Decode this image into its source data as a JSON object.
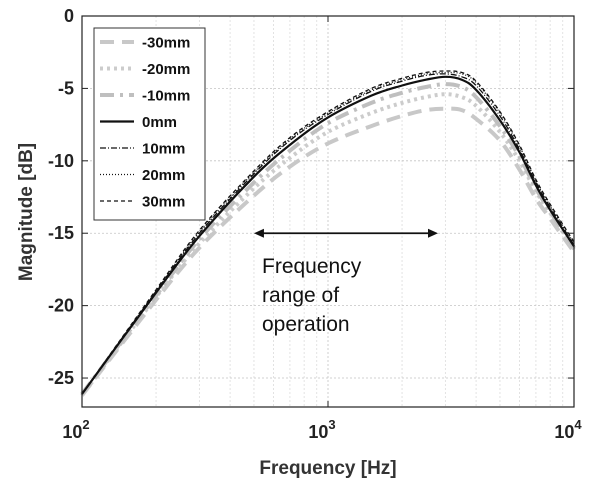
{
  "chart_data": {
    "type": "line",
    "xscale": "log",
    "xlabel": "Frequency [Hz]",
    "ylabel": "Magnitude [dB]",
    "xlim": [
      100,
      10000
    ],
    "ylim": [
      -27,
      0
    ],
    "xticks": [
      {
        "value": 100,
        "base": "10",
        "exp": "2"
      },
      {
        "value": 1000,
        "base": "10",
        "exp": "3"
      },
      {
        "value": 10000,
        "base": "10",
        "exp": "4"
      }
    ],
    "yticks": [
      {
        "value": 0,
        "label": "0"
      },
      {
        "value": -5,
        "label": "-5"
      },
      {
        "value": -10,
        "label": "-10"
      },
      {
        "value": -15,
        "label": "-15"
      },
      {
        "value": -20,
        "label": "-20"
      },
      {
        "value": -25,
        "label": "-25"
      }
    ],
    "grid": true,
    "legend_position": "top-left",
    "series": [
      {
        "name": "-30mm",
        "color": "#c8c8c8",
        "style": "dashed-thick",
        "x": [
          100,
          200,
          300,
          500,
          700,
          1000,
          1500,
          2000,
          2500,
          3000,
          3500,
          4000,
          5000,
          6000,
          7000,
          8000,
          10000
        ],
        "y": [
          -26.2,
          -19.6,
          -16.0,
          -12.4,
          -10.4,
          -8.8,
          -7.6,
          -6.9,
          -6.5,
          -6.4,
          -6.5,
          -7.1,
          -8.6,
          -10.6,
          -12.6,
          -14.0,
          -16.3
        ]
      },
      {
        "name": "-20mm",
        "color": "#cccccc",
        "style": "dotted-thick",
        "x": [
          100,
          200,
          300,
          500,
          700,
          1000,
          1500,
          2000,
          2500,
          3000,
          3500,
          4000,
          5000,
          6000,
          7000,
          8000,
          10000
        ],
        "y": [
          -26.2,
          -19.4,
          -15.7,
          -11.9,
          -9.8,
          -8.0,
          -6.7,
          -6.0,
          -5.6,
          -5.4,
          -5.6,
          -6.2,
          -8.0,
          -10.0,
          -12.1,
          -13.6,
          -16.1
        ]
      },
      {
        "name": "-10mm",
        "color": "#bfbfbf",
        "style": "dashdot-thick",
        "x": [
          100,
          200,
          300,
          500,
          700,
          1000,
          1500,
          2000,
          2500,
          3000,
          3500,
          4000,
          5000,
          6000,
          7000,
          8000,
          10000
        ],
        "y": [
          -26.1,
          -19.3,
          -15.4,
          -11.5,
          -9.3,
          -7.4,
          -6.0,
          -5.3,
          -4.9,
          -4.7,
          -4.9,
          -5.6,
          -7.6,
          -9.7,
          -11.9,
          -13.5,
          -16.0
        ]
      },
      {
        "name": "0mm",
        "color": "#111111",
        "style": "solid",
        "x": [
          100,
          200,
          300,
          500,
          700,
          1000,
          1500,
          2000,
          2500,
          3000,
          3500,
          4000,
          5000,
          6000,
          7000,
          8000,
          10000
        ],
        "y": [
          -26.1,
          -19.1,
          -15.2,
          -11.1,
          -8.9,
          -7.0,
          -5.5,
          -4.8,
          -4.4,
          -4.2,
          -4.4,
          -5.1,
          -7.2,
          -9.4,
          -11.7,
          -13.4,
          -15.9
        ]
      },
      {
        "name": "10mm",
        "color": "#111111",
        "style": "dashdot-thin",
        "x": [
          100,
          200,
          300,
          500,
          700,
          1000,
          1500,
          2000,
          2500,
          3000,
          3500,
          4000,
          5000,
          6000,
          7000,
          8000,
          10000
        ],
        "y": [
          -26.1,
          -19.0,
          -15.0,
          -10.9,
          -8.6,
          -6.8,
          -5.2,
          -4.5,
          -4.1,
          -4.0,
          -4.2,
          -4.8,
          -6.9,
          -9.2,
          -11.5,
          -13.2,
          -15.8
        ]
      },
      {
        "name": "20mm",
        "color": "#111111",
        "style": "dotted-thin",
        "x": [
          100,
          200,
          300,
          500,
          700,
          1000,
          1500,
          2000,
          2500,
          3000,
          3500,
          4000,
          5000,
          6000,
          7000,
          8000,
          10000
        ],
        "y": [
          -26.1,
          -19.0,
          -14.9,
          -10.8,
          -8.5,
          -6.7,
          -5.1,
          -4.4,
          -4.0,
          -3.9,
          -4.0,
          -4.6,
          -6.7,
          -9.0,
          -11.4,
          -13.1,
          -15.7
        ]
      },
      {
        "name": "30mm",
        "color": "#111111",
        "style": "dashed-thin",
        "x": [
          100,
          200,
          300,
          500,
          700,
          1000,
          1500,
          2000,
          2500,
          3000,
          3500,
          4000,
          5000,
          6000,
          7000,
          8000,
          10000
        ],
        "y": [
          -26.1,
          -18.9,
          -14.8,
          -10.7,
          -8.4,
          -6.6,
          -5.0,
          -4.3,
          -3.9,
          -3.8,
          -3.9,
          -4.5,
          -6.6,
          -8.9,
          -11.3,
          -13.0,
          -15.6
        ]
      }
    ],
    "annotation": {
      "lines": [
        "Frequency",
        "range of",
        "operation"
      ],
      "arrow_x_range": [
        500,
        2800
      ],
      "arrow_y": -15
    }
  }
}
